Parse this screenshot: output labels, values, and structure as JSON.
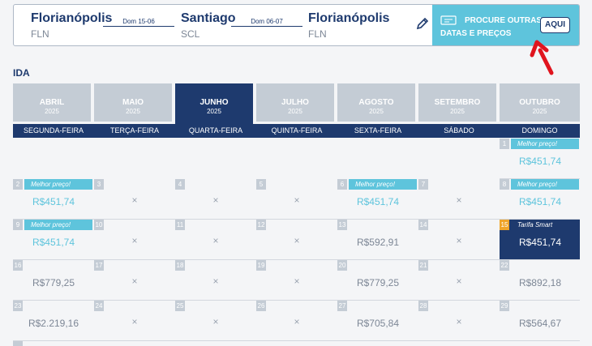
{
  "route": {
    "origin_city": "Florianópolis",
    "origin_code": "FLN",
    "dest_city": "Santiago",
    "dest_code": "SCL",
    "return_city": "Florianópolis",
    "return_code": "FLN",
    "outbound_date": "Dom 15-06",
    "return_date": "Dom 06-07",
    "edit_icon": "pencil-icon"
  },
  "promo": {
    "line1": "PROCURE OUTRAS",
    "line2": "DATAS E PREÇOS",
    "button": "AQUI",
    "icon": "calendar-ticket-icon"
  },
  "section_label": "IDA",
  "months": [
    {
      "name": "ABRIL",
      "year": "2025",
      "active": false
    },
    {
      "name": "MAIO",
      "year": "2025",
      "active": false
    },
    {
      "name": "JUNHO",
      "year": "2025",
      "active": true
    },
    {
      "name": "JULHO",
      "year": "2025",
      "active": false
    },
    {
      "name": "AGOSTO",
      "year": "2025",
      "active": false
    },
    {
      "name": "SETEMBRO",
      "year": "2025",
      "active": false
    },
    {
      "name": "OUTUBRO",
      "year": "2025",
      "active": false
    }
  ],
  "weekdays": [
    "SEGUNDA-FEIRA",
    "TERÇA-FEIRA",
    "QUARTA-FEIRA",
    "QUINTA-FEIRA",
    "SEXTA-FEIRA",
    "SÁBADO",
    "DOMINGO"
  ],
  "calendar": [
    {
      "day": "1",
      "badge": "Melhor preço!",
      "price": "R$451,74",
      "best": true
    },
    {
      "day": "2",
      "badge": "Melhor preço!",
      "price": "R$451,74",
      "best": true
    },
    {
      "day": "3",
      "price": "×"
    },
    {
      "day": "4",
      "price": "×"
    },
    {
      "day": "5",
      "price": "×"
    },
    {
      "day": "6",
      "badge": "Melhor preço!",
      "price": "R$451,74",
      "best": true
    },
    {
      "day": "7",
      "price": "×"
    },
    {
      "day": "8",
      "badge": "Melhor preço!",
      "price": "R$451,74",
      "best": true
    },
    {
      "day": "9",
      "badge": "Melhor preço!",
      "price": "R$451,74",
      "best": true
    },
    {
      "day": "10",
      "price": "×"
    },
    {
      "day": "11",
      "price": "×"
    },
    {
      "day": "12",
      "price": "×"
    },
    {
      "day": "13",
      "price": "R$592,91"
    },
    {
      "day": "14",
      "price": "×"
    },
    {
      "day": "15",
      "badge": "Tarifa Smart",
      "price": "R$451,74",
      "smart": true
    },
    {
      "day": "16",
      "price": "R$779,25"
    },
    {
      "day": "17",
      "price": "×"
    },
    {
      "day": "18",
      "price": "×"
    },
    {
      "day": "19",
      "price": "×"
    },
    {
      "day": "20",
      "price": "R$779,25"
    },
    {
      "day": "21",
      "price": "×"
    },
    {
      "day": "22",
      "price": "R$892,18"
    },
    {
      "day": "23",
      "price": "R$2.219,16"
    },
    {
      "day": "24",
      "price": "×"
    },
    {
      "day": "25",
      "price": "×"
    },
    {
      "day": "26",
      "price": "×"
    },
    {
      "day": "27",
      "price": "R$705,84"
    },
    {
      "day": "28",
      "price": "×"
    },
    {
      "day": "29",
      "price": "R$564,67"
    }
  ],
  "colors": {
    "navy": "#1e3a6e",
    "cyan": "#5ec4dc",
    "gray": "#c4ccd5",
    "orange": "#f0a52a",
    "arrow_red": "#e0141e"
  }
}
